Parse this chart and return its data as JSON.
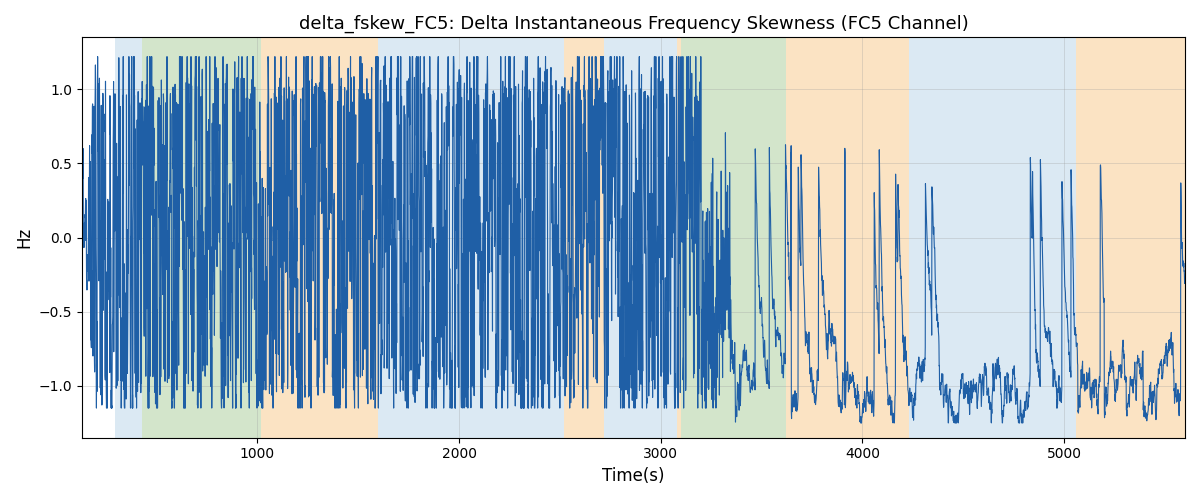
{
  "title": "delta_fskew_FC5: Delta Instantaneous Frequency Skewness (FC5 Channel)",
  "xlabel": "Time(s)",
  "ylabel": "Hz",
  "xlim": [
    130,
    5600
  ],
  "ylim": [
    -1.35,
    1.35
  ],
  "line_color": "#1f5fa6",
  "line_width": 0.8,
  "background_regions": [
    {
      "xmin": 295,
      "xmax": 430,
      "color": "#b8d4e8",
      "alpha": 0.5
    },
    {
      "xmin": 430,
      "xmax": 1020,
      "color": "#a8cc98",
      "alpha": 0.5
    },
    {
      "xmin": 1020,
      "xmax": 1600,
      "color": "#f8c888",
      "alpha": 0.5
    },
    {
      "xmin": 1600,
      "xmax": 1780,
      "color": "#b8d4e8",
      "alpha": 0.5
    },
    {
      "xmin": 1780,
      "xmax": 2520,
      "color": "#b8d4e8",
      "alpha": 0.5
    },
    {
      "xmin": 2520,
      "xmax": 2720,
      "color": "#f8c888",
      "alpha": 0.5
    },
    {
      "xmin": 2720,
      "xmax": 3080,
      "color": "#b8d4e8",
      "alpha": 0.5
    },
    {
      "xmin": 3080,
      "xmax": 3100,
      "color": "#f8c888",
      "alpha": 0.5
    },
    {
      "xmin": 3100,
      "xmax": 3620,
      "color": "#a8cc98",
      "alpha": 0.5
    },
    {
      "xmin": 3620,
      "xmax": 3800,
      "color": "#f8c888",
      "alpha": 0.5
    },
    {
      "xmin": 3800,
      "xmax": 4230,
      "color": "#f8c888",
      "alpha": 0.5
    },
    {
      "xmin": 4230,
      "xmax": 4760,
      "color": "#b8d4e8",
      "alpha": 0.5
    },
    {
      "xmin": 4760,
      "xmax": 5060,
      "color": "#b8d4e8",
      "alpha": 0.5
    },
    {
      "xmin": 5060,
      "xmax": 5600,
      "color": "#f8c888",
      "alpha": 0.5
    }
  ],
  "xticks": [
    1000,
    2000,
    3000,
    4000,
    5000
  ],
  "yticks": [
    -1.0,
    -0.5,
    0.0,
    0.5,
    1.0
  ],
  "figsize": [
    12.0,
    5.0
  ],
  "dpi": 100
}
